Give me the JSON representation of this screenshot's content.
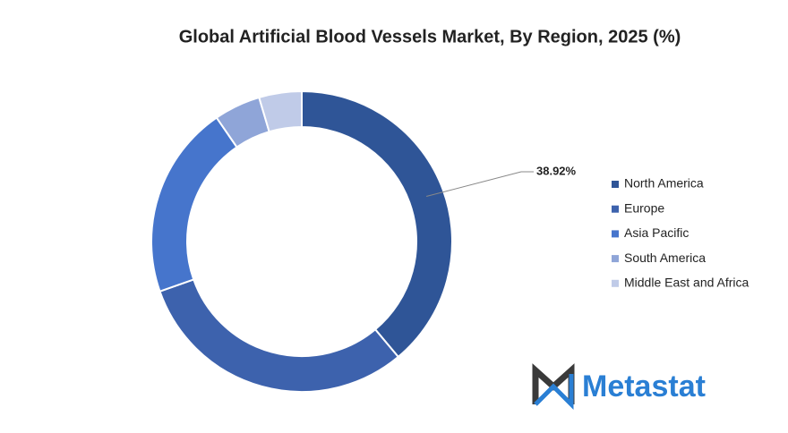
{
  "chart_data": {
    "type": "donut",
    "title": "Global Artificial Blood Vessels Market, By Region, 2025 (%)",
    "categories": [
      "North America",
      "Europe",
      "Asia Pacific",
      "South America",
      "Middle East and Africa"
    ],
    "values": [
      38.92,
      30.7,
      20.8,
      5.0,
      4.58
    ],
    "value_labels": [
      "38.92%",
      null,
      null,
      null,
      null
    ],
    "colors": [
      "#2f5597",
      "#3d62ad",
      "#4675cc",
      "#8fa5d8",
      "#c0cbe8"
    ],
    "legend": "right"
  },
  "logo": "Metastat"
}
